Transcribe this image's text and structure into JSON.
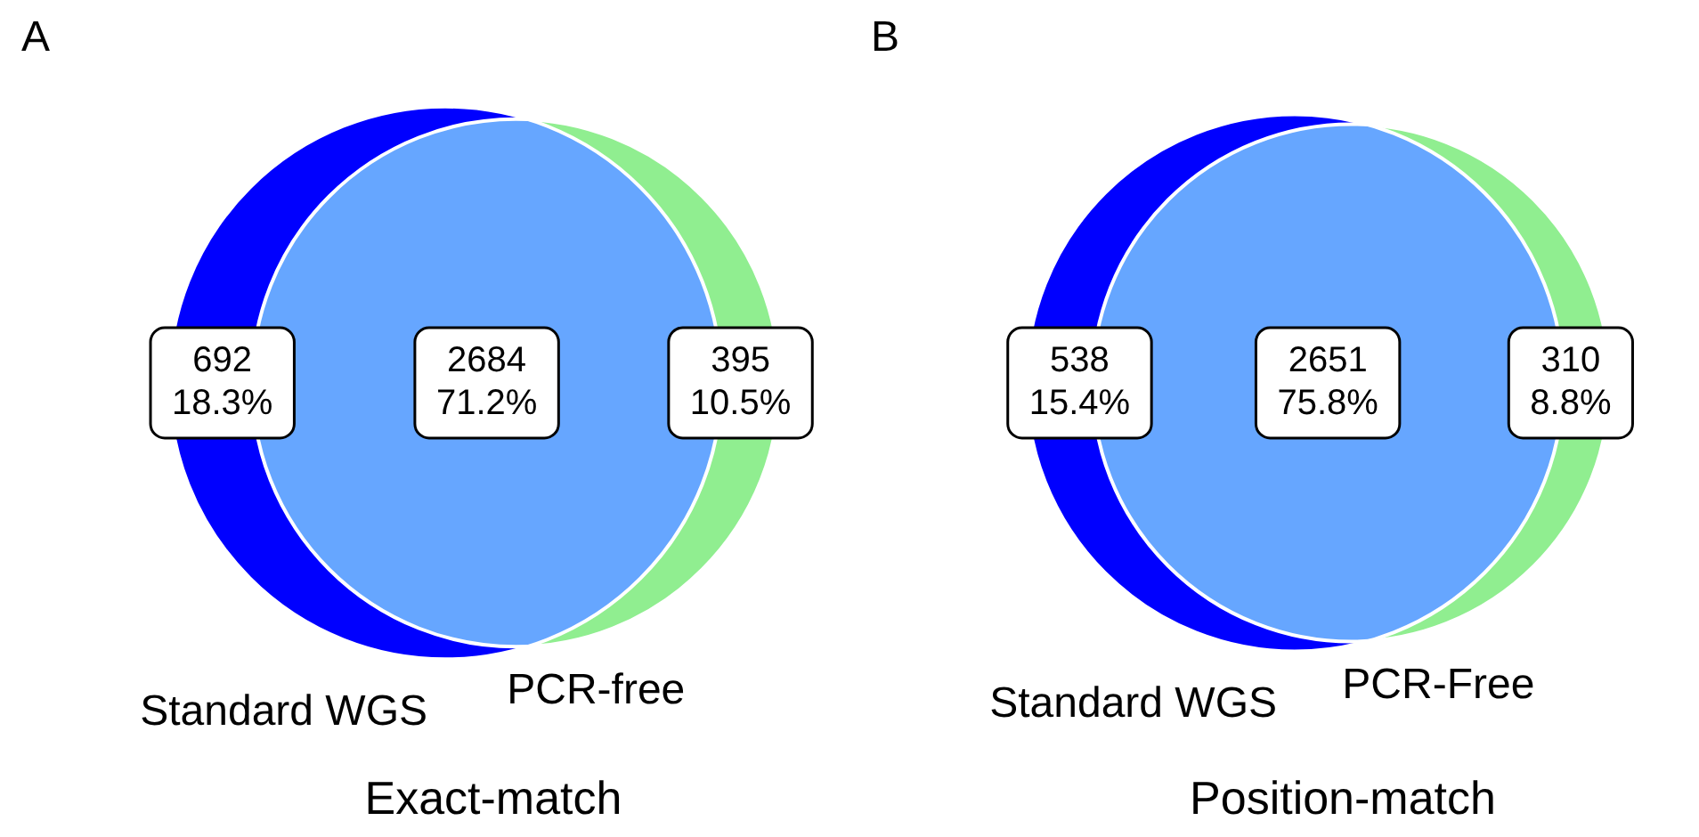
{
  "chart_data": [
    {
      "type": "other",
      "title": "Exact-match",
      "annotations": [
        "A",
        "Standard WGS",
        "PCR-free"
      ],
      "categories": [
        null,
        null,
        null
      ],
      "values": [
        692,
        2684,
        395
      ],
      "value_labels": [
        "692\n18.3%",
        "2684\n71.2%",
        "395\n10.5%"
      ],
      "colors": [
        "#0000ff",
        "#66a6ff",
        "#90ee90"
      ]
    },
    {
      "type": "other",
      "title": "Position-match",
      "annotations": [
        "B",
        "Standard WGS",
        "PCR-Free"
      ],
      "categories": [
        null,
        null,
        null
      ],
      "values": [
        538,
        2651,
        310
      ],
      "value_labels": [
        "538\n15.4%",
        "2651\n75.8%",
        "310\n8.8%"
      ],
      "colors": [
        "#0000ff",
        "#66a6ff",
        "#90ee90"
      ]
    }
  ]
}
